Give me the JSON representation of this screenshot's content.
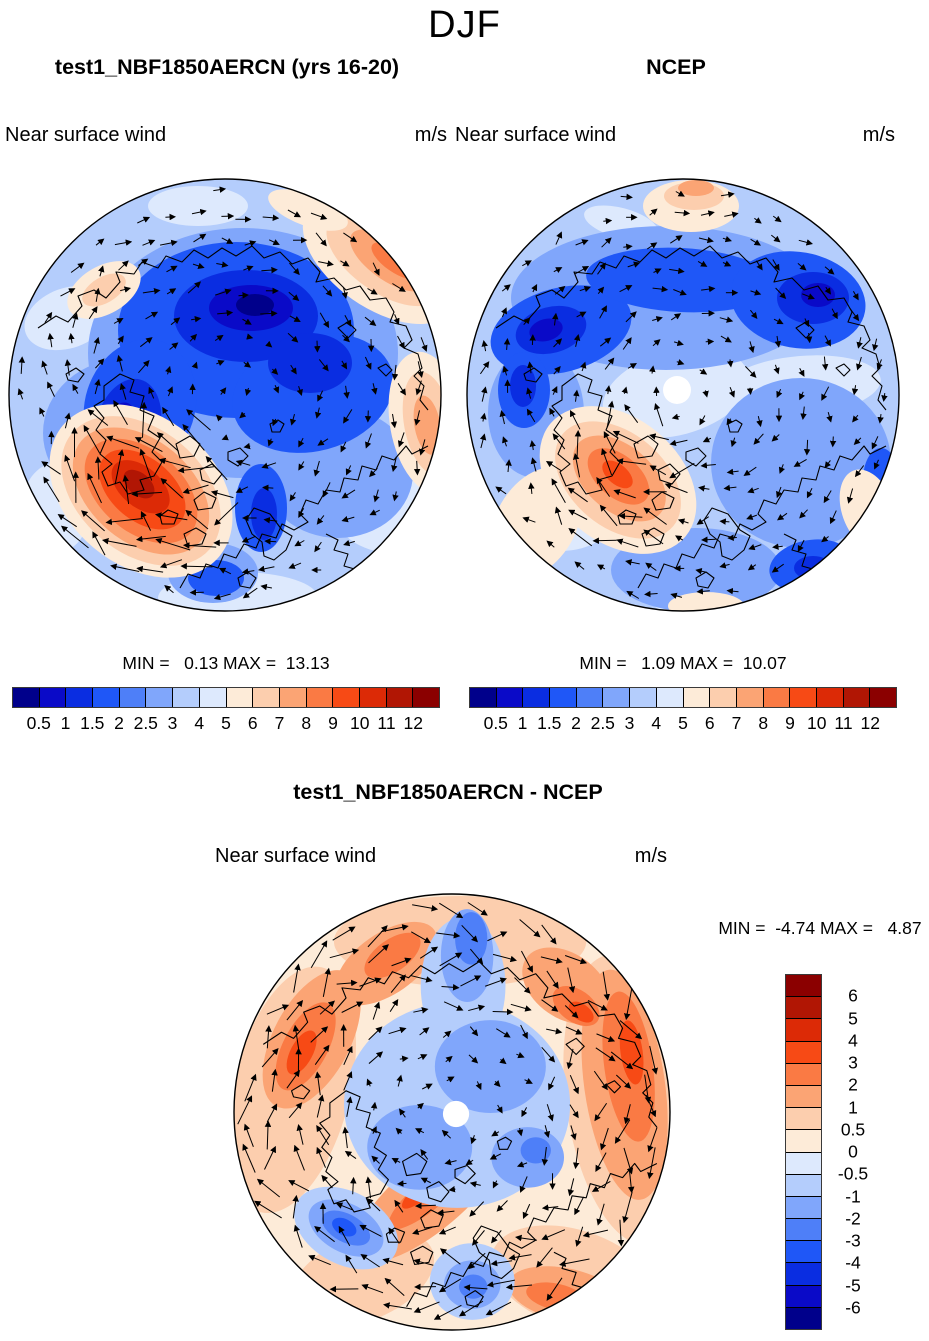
{
  "page": {
    "title": "DJF"
  },
  "panels": {
    "model": {
      "title": "test1_NBF1850AERCN (yrs 16-20)",
      "field_label": "Near surface wind",
      "units": "m/s",
      "stats": "MIN =   0.13 MAX =  13.13"
    },
    "obs": {
      "title": "NCEP",
      "field_label": "Near surface wind",
      "units": "m/s",
      "stats": "MIN =   1.09 MAX =  10.07"
    },
    "diff": {
      "title": "test1_NBF1850AERCN - NCEP",
      "field_label": "Near surface wind",
      "units": "m/s",
      "stats": "MIN =  -4.74 MAX =   4.87"
    }
  },
  "colorbar": {
    "palette_blue_to_red": [
      "#00008B",
      "#0A0AC8",
      "#0A2DE1",
      "#1F57F7",
      "#4E7FF8",
      "#80A6FB",
      "#B4CDFC",
      "#DDE9FD",
      "#FDEBD8",
      "#FCCEAE",
      "#FBA474",
      "#FA7A44",
      "#F74A15",
      "#DC2A06",
      "#B11604",
      "#8B0000"
    ],
    "speed_labels": [
      "0.5",
      "1",
      "1.5",
      "2",
      "2.5",
      "3",
      "4",
      "5",
      "6",
      "7",
      "8",
      "9",
      "10",
      "11",
      "12"
    ],
    "diff_labels_top_to_bottom": [
      "6",
      "5",
      "4",
      "3",
      "2",
      "1",
      "0.5",
      "0",
      "-0.5",
      "-1",
      "-2",
      "-3",
      "-4",
      "-5",
      "-6"
    ],
    "vector_color": "#000000",
    "coastline_color": "#000000"
  },
  "chart_data": [
    {
      "type": "heatmap",
      "panel": "model",
      "title": "test1_NBF1850AERCN (yrs 16-20)",
      "season": "DJF",
      "variable": "Near surface wind",
      "units": "m/s",
      "projection": "north polar stereographic",
      "min": 0.13,
      "max": 13.13,
      "contour_levels": [
        0.5,
        1,
        1.5,
        2,
        2.5,
        3,
        4,
        5,
        6,
        7,
        8,
        9,
        10,
        11,
        12
      ],
      "overlay": "black wind vector arrows and coastlines",
      "legend_position": "below",
      "notable_features": "dark blue (weak wind) over central Arctic; strong red maximum (>12 m/s) over North Atlantic lower-left; orange band upper-right rim"
    },
    {
      "type": "heatmap",
      "panel": "observation",
      "title": "NCEP",
      "season": "DJF",
      "variable": "Near surface wind",
      "units": "m/s",
      "projection": "north polar stereographic",
      "min": 1.09,
      "max": 10.07,
      "contour_levels": [
        0.5,
        1,
        1.5,
        2,
        2.5,
        3,
        4,
        5,
        6,
        7,
        8,
        9,
        10,
        11,
        12
      ],
      "overlay": "black wind vector arrows and coastlines; white data-void dot at pole",
      "legend_position": "below",
      "notable_features": "broad light-blue field; dark blue band along top; moderate orange maximum over North Atlantic lower-left"
    },
    {
      "type": "heatmap",
      "panel": "difference",
      "title": "test1_NBF1850AERCN - NCEP",
      "season": "DJF",
      "variable": "Near surface wind",
      "units": "m/s",
      "projection": "north polar stereographic",
      "min": -4.74,
      "max": 4.87,
      "contour_levels": [
        -6,
        -5,
        -4,
        -3,
        -2,
        -1,
        -0.5,
        0,
        0.5,
        1,
        2,
        3,
        4,
        5,
        6
      ],
      "overlay": "black wind vector arrows and coastlines; white data-void dot at pole",
      "legend_position": "right",
      "notable_features": "blue (negative) difference over central Arctic; red/orange (positive) ring around periphery, strongest upper-left and right"
    }
  ]
}
